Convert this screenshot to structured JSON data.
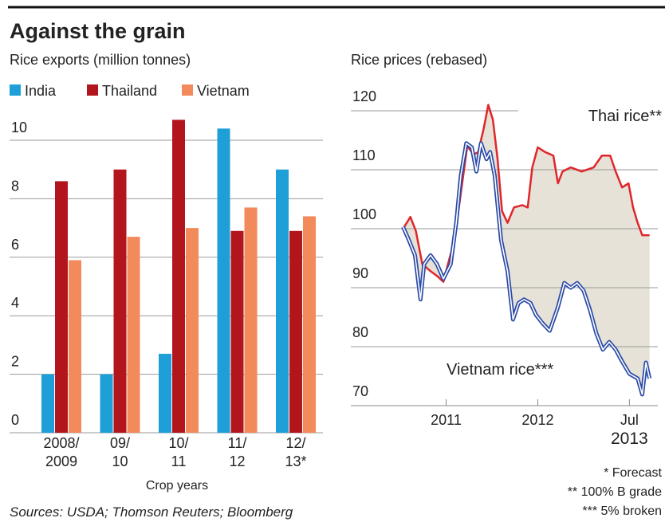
{
  "title": "Against the grain",
  "sources": "Sources: USDA; Thomson Reuters; Bloomberg",
  "footnotes": [
    "* Forecast",
    "** 100% B grade",
    "*** 5% broken"
  ],
  "chart_data": [
    {
      "type": "bar",
      "title": "Rice exports (million tonnes)",
      "x_label": "Crop years",
      "categories": [
        "2008/2009",
        "09/10",
        "10/11",
        "11/12",
        "12/13*"
      ],
      "series": [
        {
          "name": "India",
          "color": "#1e9fd8",
          "values": [
            2.0,
            2.0,
            2.7,
            10.4,
            9.0
          ]
        },
        {
          "name": "Thailand",
          "color": "#b3151c",
          "values": [
            8.6,
            9.0,
            10.7,
            6.9,
            6.9
          ]
        },
        {
          "name": "Vietnam",
          "color": "#f28a5b",
          "values": [
            5.9,
            6.7,
            7.0,
            7.7,
            7.4
          ]
        }
      ],
      "ylim": [
        0,
        11
      ],
      "yticks": [
        0,
        2,
        4,
        6,
        8,
        10
      ],
      "grid": true
    },
    {
      "type": "line",
      "title": "Rice prices (rebased)",
      "series": [
        {
          "name": "Thai rice**",
          "color": "#e0262b",
          "x": [
            2011.03,
            2011.11,
            2011.17,
            2011.24,
            2011.33,
            2011.4,
            2011.47,
            2011.52,
            2011.59,
            2011.66,
            2011.73,
            2011.8,
            2011.85,
            2011.91,
            2011.96,
            2012.01,
            2012.06,
            2012.11,
            2012.17,
            2012.24,
            2012.33,
            2012.39,
            2012.44,
            2012.5,
            2012.58,
            2012.67,
            2012.72,
            2012.77,
            2012.86,
            2012.98,
            2013.11,
            2013.2,
            2013.29,
            2013.35,
            2013.42,
            2013.49,
            2013.54,
            2013.59,
            2013.64,
            2013.72
          ],
          "values": [
            100,
            102,
            99.6,
            94,
            92.8,
            92,
            91,
            94,
            98,
            106,
            114,
            112.6,
            113,
            117,
            121,
            118.5,
            112,
            103,
            101,
            103.6,
            104,
            103.6,
            110.4,
            113.8,
            113,
            112.4,
            107.7,
            109.7,
            110.4,
            109.7,
            110.4,
            112.4,
            112.4,
            109.7,
            107,
            107.7,
            103.6,
            101,
            98.9,
            98.9
          ]
        },
        {
          "name": "Vietnam rice***",
          "color": "#2a4aa8",
          "x": [
            2011.03,
            2011.09,
            2011.16,
            2011.22,
            2011.26,
            2011.33,
            2011.4,
            2011.47,
            2011.55,
            2011.61,
            2011.66,
            2011.72,
            2011.78,
            2011.83,
            2011.88,
            2011.94,
            2011.98,
            2012.03,
            2012.1,
            2012.17,
            2012.23,
            2012.29,
            2012.35,
            2012.42,
            2012.48,
            2012.55,
            2012.63,
            2012.72,
            2012.79,
            2012.86,
            2012.93,
            2013.0,
            2013.07,
            2013.14,
            2013.21,
            2013.28,
            2013.35,
            2013.42,
            2013.5,
            2013.59,
            2013.64,
            2013.68,
            2013.72
          ],
          "values": [
            100.3,
            98.2,
            95.5,
            88,
            94,
            95.5,
            94,
            91.5,
            94,
            101,
            109,
            114.5,
            113.8,
            109.7,
            114.5,
            111.8,
            113,
            109,
            98,
            92.8,
            84.6,
            87.4,
            88,
            87.4,
            85.4,
            84,
            82.7,
            86.7,
            90.8,
            90,
            90.8,
            89.5,
            86.2,
            82.2,
            79.5,
            80.8,
            79.5,
            77.5,
            75.4,
            74.6,
            71.9,
            77.3,
            74.6
          ]
        }
      ],
      "xlim": [
        2010.46,
        2013.81
      ],
      "xticks": [
        {
          "value": 2011.5,
          "label": "2011"
        },
        {
          "value": 2012.5,
          "label": "2012"
        },
        {
          "value": 2013.5,
          "label": "Jul 2013"
        }
      ],
      "ylim": [
        70,
        122
      ],
      "yticks": [
        70,
        80,
        90,
        100,
        110,
        120
      ],
      "grid": true
    }
  ]
}
